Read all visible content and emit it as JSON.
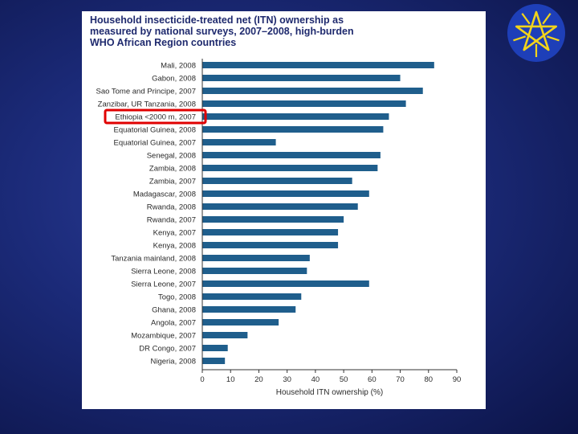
{
  "chart_data": {
    "type": "bar",
    "orientation": "horizontal",
    "title_lines": [
      "Household insecticide-treated net (ITN) ownership as",
      "measured by national surveys, 2007–2008, high-burden",
      "WHO African Region countries"
    ],
    "categories": [
      "Mali, 2008",
      "Gabon, 2008",
      "Sao Tome and Principe, 2007",
      "Zanzibar, UR Tanzania, 2008",
      "Ethiopia <2000 m, 2007",
      "Equatorial Guinea, 2008",
      "Equatorial Guinea, 2007",
      "Senegal, 2008",
      "Zambia, 2008",
      "Zambia, 2007",
      "Madagascar, 2008",
      "Rwanda, 2008",
      "Rwanda, 2007",
      "Kenya, 2007",
      "Kenya, 2008",
      "Tanzania mainland, 2008",
      "Sierra Leone, 2008",
      "Sierra Leone, 2007",
      "Togo, 2008",
      "Ghana, 2008",
      "Angola, 2007",
      "Mozambique, 2007",
      "DR Congo, 2007",
      "Nigeria, 2008"
    ],
    "values": [
      82,
      70,
      78,
      72,
      66,
      64,
      26,
      63,
      62,
      53,
      59,
      55,
      50,
      48,
      48,
      38,
      37,
      59,
      35,
      33,
      27,
      16,
      9,
      8
    ],
    "xlabel": "Household ITN ownership (%)",
    "xlim": [
      0,
      90
    ],
    "xticks": [
      "0",
      "10",
      "20",
      "30",
      "40",
      "50",
      "60",
      "70",
      "80",
      "90"
    ],
    "highlighted_category": "Ethiopia <2000 m, 2007",
    "bar_color": "#1f5e8c",
    "highlight_color": "#e00000",
    "grid": false
  },
  "emblem": {
    "icon": "ethiopian-star-emblem-icon",
    "circle_color": "#1e3fb8",
    "star_color": "#f2d41a"
  }
}
